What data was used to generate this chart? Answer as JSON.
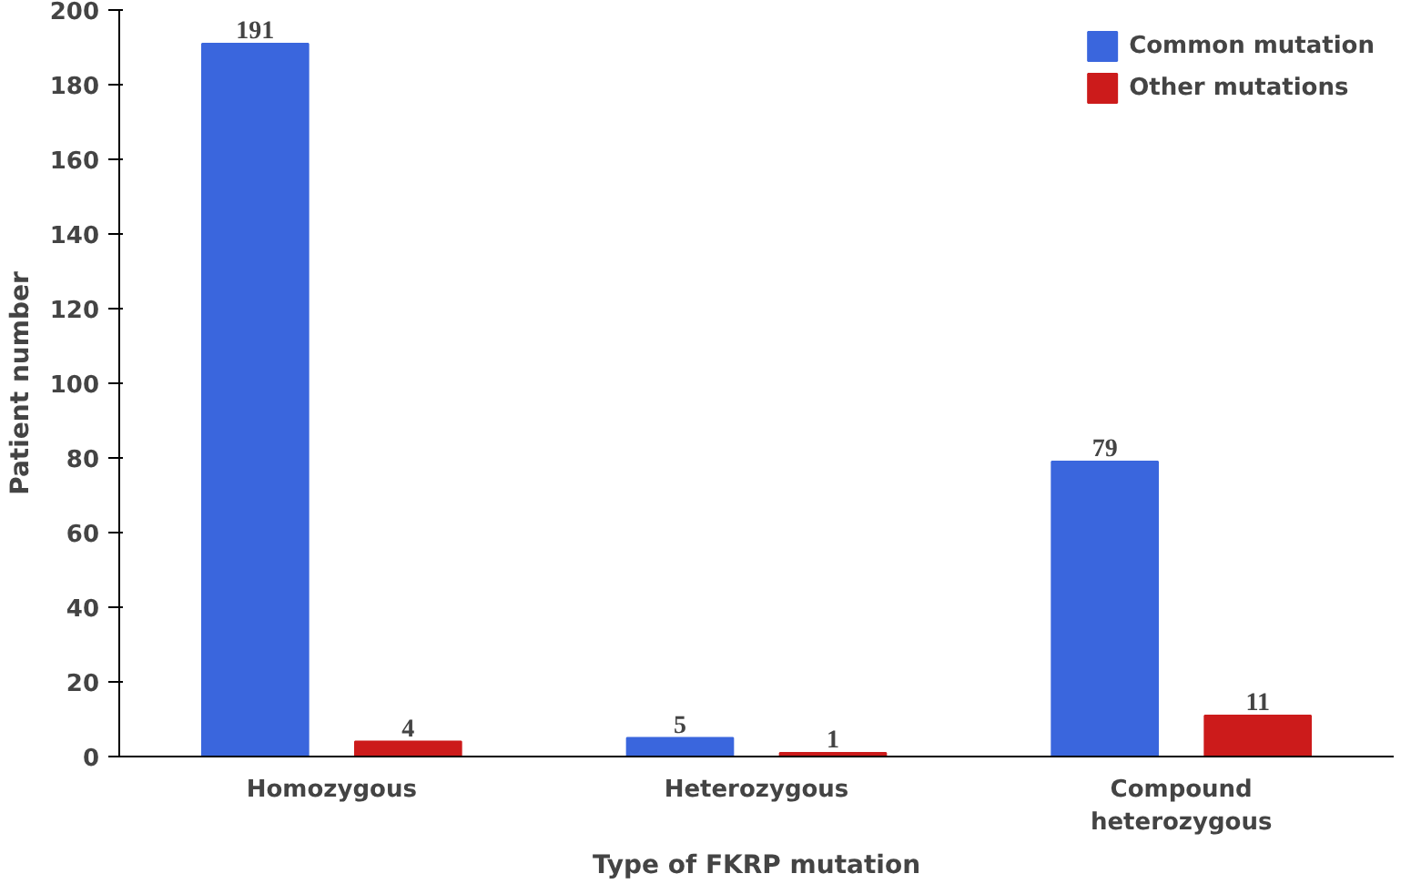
{
  "chart_data": {
    "type": "bar",
    "xlabel": "Type of FKRP mutation",
    "ylabel": "Patient number",
    "categories": [
      "Homozygous",
      "Heterozygous",
      "Compound\nheterozygous"
    ],
    "series": [
      {
        "name": "Common mutation",
        "color": "#3a66dd",
        "values": [
          191,
          5,
          79
        ]
      },
      {
        "name": "Other mutations",
        "color": "#cc1b1b",
        "values": [
          4,
          1,
          11
        ]
      }
    ],
    "ylim": [
      0,
      200
    ],
    "yticks": [
      0,
      20,
      40,
      60,
      80,
      100,
      120,
      140,
      160,
      180,
      200
    ],
    "grid": false,
    "legend": "top right",
    "data_labels": true
  }
}
